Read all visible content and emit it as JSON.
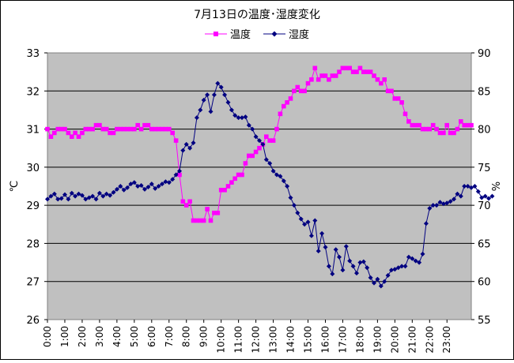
{
  "chart_data": {
    "type": "line",
    "title": "7月13日の温度･湿度変化",
    "ylabel_left": "℃",
    "ylabel_right": "%",
    "ylim_left": [
      26,
      33
    ],
    "ylim_right": [
      55,
      90
    ],
    "left_ticks": [
      "33",
      "32",
      "31",
      "30",
      "29",
      "28",
      "27",
      "26"
    ],
    "right_ticks": [
      "90",
      "85",
      "80",
      "75",
      "70",
      "65",
      "60",
      "55"
    ],
    "x_tick_labels": [
      "0:00",
      "1:00",
      "2:00",
      "3:00",
      "4:00",
      "5:00",
      "6:00",
      "7:00",
      "8:00",
      "9:00",
      "10:00",
      "11:00",
      "12:00",
      "13:00",
      "14:00",
      "15:00",
      "16:00",
      "17:00",
      "18:00",
      "19:00",
      "20:00",
      "21:00",
      "22:00",
      "23:00"
    ],
    "grid": "horizontal",
    "legend_position": "top",
    "background_color": "#c0c0c0",
    "series": [
      {
        "name": "温度",
        "axis": "left",
        "color": "#ff00ff",
        "marker": "square",
        "values": [
          31.0,
          30.8,
          30.9,
          31.0,
          31.0,
          31.0,
          30.9,
          30.8,
          30.9,
          30.8,
          30.9,
          31.0,
          31.0,
          31.0,
          31.1,
          31.1,
          31.0,
          31.0,
          30.9,
          30.9,
          31.0,
          31.0,
          31.0,
          31.0,
          31.0,
          31.0,
          31.1,
          31.0,
          31.1,
          31.1,
          31.0,
          31.0,
          31.0,
          31.0,
          31.0,
          31.0,
          30.9,
          30.7,
          29.8,
          29.1,
          29.0,
          29.1,
          28.6,
          28.6,
          28.6,
          28.6,
          28.9,
          28.6,
          28.8,
          28.8,
          29.4,
          29.4,
          29.5,
          29.6,
          29.7,
          29.8,
          29.8,
          30.1,
          30.3,
          30.3,
          30.4,
          30.5,
          30.6,
          30.8,
          30.7,
          30.7,
          31.0,
          31.4,
          31.6,
          31.7,
          31.8,
          32.0,
          32.1,
          32.0,
          32.0,
          32.2,
          32.3,
          32.6,
          32.3,
          32.4,
          32.4,
          32.3,
          32.4,
          32.4,
          32.5,
          32.6,
          32.6,
          32.6,
          32.5,
          32.5,
          32.6,
          32.5,
          32.5,
          32.5,
          32.4,
          32.3,
          32.2,
          32.3,
          32.0,
          32.0,
          31.8,
          31.8,
          31.7,
          31.4,
          31.2,
          31.1,
          31.1,
          31.1,
          31.0,
          31.0,
          31.0,
          31.1,
          31.0,
          30.9,
          30.9,
          31.1,
          30.9,
          30.9,
          31.0,
          31.2,
          31.1,
          31.1,
          31.1
        ]
      },
      {
        "name": "湿度",
        "axis": "right",
        "color": "#000080",
        "marker": "diamond",
        "values": [
          70.8,
          71.2,
          71.5,
          70.8,
          70.9,
          71.4,
          70.8,
          71.6,
          71.2,
          71.5,
          71.3,
          70.8,
          71.0,
          71.2,
          70.8,
          71.6,
          71.2,
          71.5,
          71.3,
          71.7,
          72.1,
          72.5,
          72.0,
          72.3,
          72.8,
          73.0,
          72.5,
          72.6,
          72.1,
          72.4,
          72.8,
          72.2,
          72.5,
          72.8,
          73.1,
          73.0,
          73.4,
          74.0,
          74.5,
          77.2,
          78.0,
          77.5,
          78.2,
          81.5,
          82.5,
          83.8,
          84.5,
          82.3,
          84.5,
          86.0,
          85.5,
          84.5,
          83.5,
          82.5,
          81.8,
          81.5,
          81.5,
          81.6,
          80.5,
          80.0,
          79.0,
          78.5,
          78.0,
          76.0,
          75.5,
          74.5,
          74.0,
          73.8,
          73.2,
          72.5,
          71.0,
          70.0,
          69.0,
          68.2,
          67.5,
          67.8,
          66.0,
          68.0,
          64.0,
          66.3,
          64.5,
          62.0,
          61.0,
          64.2,
          63.2,
          61.5,
          64.6,
          62.7,
          62.0,
          61.1,
          62.5,
          62.6,
          61.8,
          60.5,
          59.8,
          60.3,
          59.4,
          60.0,
          60.8,
          61.5,
          61.6,
          61.8,
          62.0,
          62.0,
          63.2,
          63.0,
          62.7,
          62.5,
          63.6,
          67.6,
          69.6,
          70.0,
          70.0,
          70.4,
          70.2,
          70.3,
          70.5,
          70.8,
          71.5,
          71.2,
          72.5,
          72.5,
          72.3,
          72.5,
          71.8,
          71.0,
          71.2,
          70.9,
          71.2
        ]
      }
    ]
  }
}
